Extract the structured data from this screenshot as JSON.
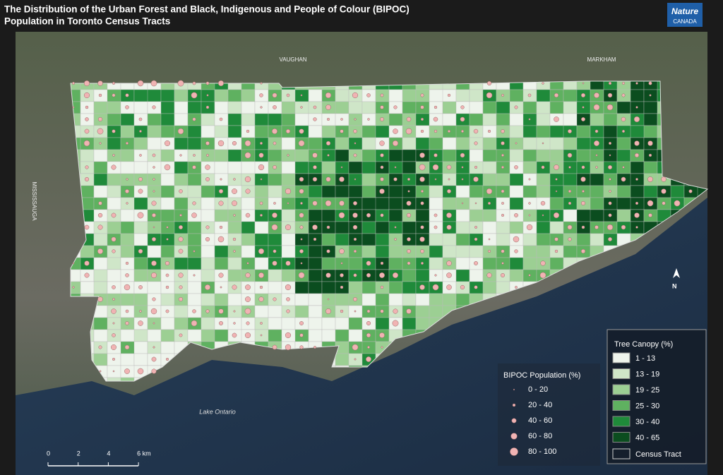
{
  "header": {
    "title_line1": "The Distribution of the Urban Forest and Black, Indigenous and People of Colour (BIPOC)",
    "title_line2": "Population in Toronto Census Tracts"
  },
  "logo": {
    "line1": "Nature",
    "line2": "CANADA"
  },
  "places": {
    "vaughan": "VAUGHAN",
    "markham": "MARKHAM",
    "mississauga": "MISSISSAUGA",
    "lake": "Lake Ontario"
  },
  "bipoc_legend": {
    "title": "BIPOC Population (%)",
    "items": [
      "0 - 20",
      "20 - 40",
      "40 - 60",
      "60 - 80",
      "80 - 100"
    ]
  },
  "canopy_legend": {
    "title": "Tree Canopy (%)",
    "items": [
      {
        "label": "1 - 13",
        "color": "#eef4ec"
      },
      {
        "label": "13 - 19",
        "color": "#cfe6c8"
      },
      {
        "label": "19 - 25",
        "color": "#9ccf93"
      },
      {
        "label": "25 - 30",
        "color": "#5fb160"
      },
      {
        "label": "30 - 40",
        "color": "#1f8a3a"
      },
      {
        "label": "40 - 65",
        "color": "#0b4d1f"
      }
    ],
    "census_tract": "Census Tract"
  },
  "scale_bar": {
    "ticks": [
      "0",
      "2",
      "4",
      "6 km"
    ]
  },
  "north": "N"
}
